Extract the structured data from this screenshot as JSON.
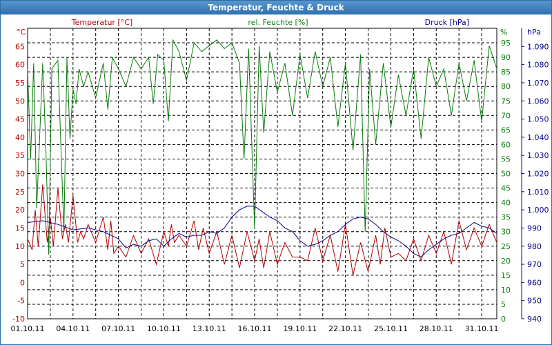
{
  "window": {
    "title": "Temperatur, Feuchte & Druck"
  },
  "colors": {
    "temperature": "#b00000",
    "humidity": "#0a7a0a",
    "pressure": "#00008b",
    "grid": "#000000",
    "title_bg": "#3a7bbf"
  },
  "chart_data": {
    "type": "line",
    "title": "Temperatur, Feuchte & Druck",
    "axes": {
      "temperature": {
        "label": "Temperatur [°C]",
        "unit": "°C",
        "range": [
          -10,
          70
        ],
        "ticks": [
          -10,
          -5,
          0,
          5,
          10,
          15,
          20,
          25,
          30,
          35,
          40,
          45,
          50,
          55,
          60,
          65
        ]
      },
      "humidity": {
        "label": "rel. Feuchte [%]",
        "unit": "%",
        "range": [
          0,
          100
        ],
        "ticks": [
          0,
          5,
          10,
          15,
          20,
          25,
          30,
          35,
          40,
          45,
          50,
          55,
          60,
          65,
          70,
          75,
          80,
          85,
          90,
          95
        ]
      },
      "pressure": {
        "label": "Druck [hPa]",
        "unit": "hPa",
        "range": [
          940,
          1100
        ],
        "ticks": [
          940,
          950,
          960,
          970,
          980,
          990,
          1000,
          1010,
          1020,
          1030,
          1040,
          1050,
          1060,
          1070,
          1080,
          1090
        ]
      }
    },
    "x_ticks": [
      "01.10.11",
      "04.10.11",
      "07.10.11",
      "10.10.11",
      "13.10.11",
      "16.10.11",
      "19.10.11",
      "22.10.11",
      "25.10.11",
      "28.10.11",
      "31.10.11"
    ],
    "x_range_days": [
      0,
      31
    ],
    "series": [
      {
        "name": "Temperatur [°C]",
        "axis": "temperature",
        "color": "#b00000",
        "day": [
          0,
          0.3,
          0.5,
          0.7,
          1,
          1.3,
          1.5,
          1.7,
          2,
          2.3,
          2.5,
          2.7,
          3,
          3.3,
          3.5,
          3.7,
          4,
          4.5,
          5,
          5.3,
          5.5,
          5.7,
          6,
          6.5,
          7,
          7.5,
          8,
          8.5,
          9,
          9.3,
          9.5,
          9.7,
          10,
          10.5,
          11,
          11.3,
          11.6,
          12,
          12.5,
          13,
          13.5,
          14,
          14.5,
          15,
          15.3,
          15.6,
          16,
          16.5,
          17,
          17.5,
          18,
          18.5,
          19,
          19.5,
          20,
          20.5,
          21,
          21.5,
          22,
          22.5,
          23,
          23.3,
          23.6,
          24,
          24.5,
          25,
          25.5,
          26,
          26.5,
          27,
          27.5,
          28,
          28.5,
          29,
          29.5,
          30,
          30.5,
          31
        ],
        "values": [
          12,
          9,
          20,
          10,
          27,
          11,
          18,
          10,
          26,
          12,
          16,
          11,
          24,
          11,
          14,
          12,
          16,
          11,
          18,
          9,
          17,
          8,
          10,
          7,
          13,
          8,
          12,
          5,
          14,
          10,
          16,
          11,
          13,
          10,
          17,
          9,
          15,
          8,
          14,
          5,
          13,
          4,
          14,
          6,
          12,
          4,
          14,
          5,
          11,
          7,
          7,
          6,
          15,
          6,
          13,
          3,
          16,
          2,
          11,
          3,
          13,
          5,
          15,
          7,
          8,
          6,
          12,
          6,
          13,
          8,
          14,
          5,
          17,
          9,
          15,
          10,
          16,
          11
        ]
      },
      {
        "name": "rel. Feuchte [%]",
        "axis": "humidity",
        "color": "#0a7a0a",
        "day": [
          0,
          0.2,
          0.4,
          0.6,
          1,
          1.2,
          1.4,
          1.6,
          2,
          2.4,
          2.6,
          2.8,
          3,
          3.2,
          3.4,
          3.7,
          4,
          4.5,
          5,
          5.3,
          5.6,
          6,
          6.5,
          7,
          7.5,
          8,
          8.3,
          8.6,
          9,
          9.3,
          9.6,
          10,
          10.5,
          11,
          11.5,
          12,
          12.5,
          13,
          13.5,
          14,
          14.3,
          14.6,
          15,
          15.3,
          15.6,
          16,
          16.5,
          17,
          17.5,
          18,
          18.5,
          19,
          19.5,
          20,
          20.5,
          21,
          21.5,
          22,
          22.3,
          22.6,
          23,
          23.5,
          24,
          24.5,
          25,
          25.5,
          26,
          26.5,
          27,
          27.5,
          28,
          28.5,
          29,
          29.5,
          30,
          30.5,
          31
        ],
        "values": [
          86,
          55,
          88,
          38,
          88,
          60,
          22,
          86,
          89,
          30,
          90,
          62,
          79,
          74,
          86,
          80,
          85,
          76,
          88,
          72,
          90,
          86,
          80,
          90,
          86,
          90,
          74,
          91,
          89,
          68,
          96,
          92,
          82,
          95,
          92,
          94,
          96,
          93,
          95,
          88,
          55,
          93,
          31,
          94,
          64,
          92,
          78,
          88,
          70,
          91,
          76,
          92,
          80,
          90,
          66,
          88,
          58,
          91,
          30,
          86,
          60,
          88,
          66,
          84,
          70,
          86,
          62,
          90,
          80,
          86,
          70,
          88,
          75,
          89,
          68,
          94,
          86
        ]
      },
      {
        "name": "Druck [hPa]",
        "axis": "pressure",
        "color": "#00008b",
        "day": [
          0,
          1,
          2,
          3,
          4,
          5,
          6,
          6.5,
          7,
          7.5,
          8,
          8.5,
          9,
          9.5,
          10,
          10.5,
          11,
          11.5,
          12,
          12.5,
          13,
          13.5,
          14,
          14.5,
          15,
          15.5,
          16,
          16.5,
          17,
          17.5,
          18,
          18.5,
          19,
          19.5,
          20,
          20.5,
          21,
          21.5,
          22,
          22.5,
          23,
          23.5,
          24,
          24.5,
          25,
          25.5,
          26,
          26.5,
          27,
          27.5,
          28,
          28.5,
          29,
          29.5,
          30,
          30.5,
          31
        ],
        "values": [
          993,
          994,
          992,
          989,
          990,
          988,
          984,
          979,
          981,
          980,
          983,
          984,
          980,
          984,
          987,
          985,
          986,
          986,
          988,
          987,
          990,
          996,
          1000,
          1002,
          1002,
          999,
          996,
          994,
          990,
          988,
          983,
          980,
          981,
          983,
          986,
          988,
          992,
          995,
          996,
          995,
          992,
          988,
          985,
          983,
          980,
          976,
          974,
          978,
          981,
          984,
          986,
          987,
          990,
          993,
          991,
          990,
          987
        ]
      }
    ]
  }
}
